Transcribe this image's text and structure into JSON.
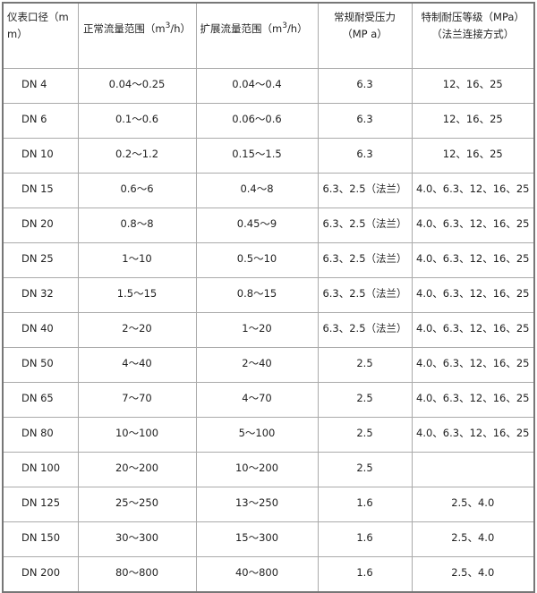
{
  "headers": [
    "仪表口径（mm）",
    "正常流量范围（m3/h）",
    "扩展流量范围（m3/h）",
    "常规耐受压力（MPa）",
    "特制耐压等级（MPa）（法兰连接方式）"
  ],
  "header_parts": {
    "col1": "仪表口径（m m）",
    "col2_pre": "正常流量范围（m",
    "col2_sup": "3",
    "col2_post": "/h）",
    "col3_pre": "扩展流量范围（m",
    "col3_sup": "3",
    "col3_post": "/h）",
    "col4": "常规耐受压力（MP a）",
    "col5": "特制耐压等级（MPa）（法兰连接方式）"
  },
  "rows": [
    [
      "DN 4",
      "0.04～0.25",
      "0.04～0.4",
      "6.3",
      "12、16、25"
    ],
    [
      "DN 6",
      "0.1～0.6",
      "0.06～0.6",
      "6.3",
      "12、16、25"
    ],
    [
      "DN 10",
      "0.2～1.2",
      "0.15～1.5",
      "6.3",
      "12、16、25"
    ],
    [
      "DN 15",
      "0.6～6",
      "0.4～8",
      "6.3、2.5（法兰）",
      "4.0、6.3、12、16、25"
    ],
    [
      "DN 20",
      "0.8～8",
      "0.45～9",
      "6.3、2.5（法兰）",
      "4.0、6.3、12、16、25"
    ],
    [
      "DN 25",
      "1～10",
      "0.5～10",
      "6.3、2.5（法兰）",
      "4.0、6.3、12、16、25"
    ],
    [
      "DN 32",
      "1.5～15",
      "0.8～15",
      "6.3、2.5（法兰）",
      "4.0、6.3、12、16、25"
    ],
    [
      "DN 40",
      "2～20",
      "1～20",
      "6.3、2.5（法兰）",
      "4.0、6.3、12、16、25"
    ],
    [
      "DN 50",
      "4～40",
      "2～40",
      "2.5",
      "4.0、6.3、12、16、25"
    ],
    [
      "DN 65",
      "7～70",
      "4～70",
      "2.5",
      "4.0、6.3、12、16、25"
    ],
    [
      "DN 80",
      "10～100",
      "5～100",
      "2.5",
      "4.0、6.3、12、16、25"
    ],
    [
      "DN 100",
      "20～200",
      "10～200",
      "2.5",
      ""
    ],
    [
      "DN 125",
      "25～250",
      "13～250",
      "1.6",
      "2.5、4.0"
    ],
    [
      "DN 150",
      "30～300",
      "15～300",
      "1.6",
      "2.5、4.0"
    ],
    [
      "DN 200",
      "80～800",
      "40～800",
      "1.6",
      "2.5、4.0"
    ]
  ]
}
